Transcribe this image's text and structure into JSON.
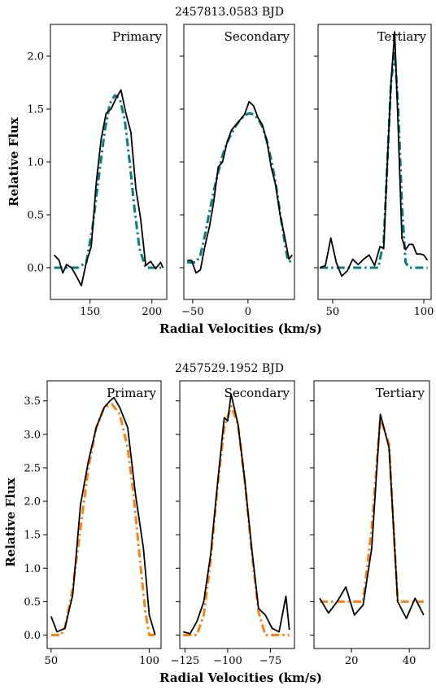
{
  "chart_data": [
    {
      "type": "line",
      "title": "2457813.0583 BJD",
      "xlabel": "Radial Velocities (km/s)",
      "ylabel": "Relative Flux",
      "ylim": [
        -0.3,
        2.3
      ],
      "yticks": [
        0.0,
        0.5,
        1.0,
        1.5,
        2.0
      ],
      "ytick_labels": [
        "0.0",
        "0.5",
        "1.0",
        "1.5",
        "2.0"
      ],
      "colors": {
        "observed": "#000000",
        "model": "#008080"
      },
      "panels": [
        {
          "label": "Primary",
          "xlim": [
            118,
            212
          ],
          "xticks": [
            150,
            200
          ],
          "xtick_labels": [
            "150",
            "200"
          ],
          "series": [
            {
              "role": "observed",
              "style": "solid",
              "x": [
                121,
                125,
                128,
                131,
                135,
                139,
                143,
                147,
                151,
                155,
                159,
                163,
                167,
                171,
                175,
                179,
                183,
                187,
                191,
                195,
                199,
                203,
                207,
                209
              ],
              "y": [
                0.12,
                0.07,
                -0.05,
                0.03,
                0.0,
                -0.08,
                -0.17,
                0.05,
                0.2,
                0.8,
                1.22,
                1.46,
                1.5,
                1.6,
                1.68,
                1.46,
                1.28,
                0.75,
                0.45,
                0.02,
                0.06,
                -0.01,
                0.05,
                0.0
              ]
            },
            {
              "role": "model",
              "style": "dashdot",
              "x": [
                121,
                140,
                147,
                152,
                157,
                162,
                166,
                170,
                174,
                178,
                182,
                186,
                190,
                195,
                200,
                209
              ],
              "y": [
                0.0,
                0.0,
                0.05,
                0.38,
                0.85,
                1.3,
                1.55,
                1.63,
                1.6,
                1.4,
                1.0,
                0.55,
                0.18,
                0.0,
                0.0,
                0.0
              ]
            }
          ]
        },
        {
          "label": "Secondary",
          "xlim": [
            -58,
            42
          ],
          "xticks": [
            -50,
            0
          ],
          "xtick_labels": [
            "−50",
            "0"
          ],
          "series": [
            {
              "role": "observed",
              "style": "solid",
              "x": [
                -55,
                -51,
                -47,
                -43,
                -39,
                -35,
                -31,
                -27,
                -23,
                -19,
                -15,
                -11,
                -7,
                -3,
                1,
                5,
                9,
                13,
                17,
                21,
                25,
                29,
                33,
                37,
                40
              ],
              "y": [
                0.07,
                0.07,
                -0.05,
                -0.02,
                0.2,
                0.38,
                0.62,
                0.95,
                1.0,
                1.18,
                1.3,
                1.35,
                1.4,
                1.45,
                1.57,
                1.53,
                1.42,
                1.35,
                1.2,
                0.95,
                0.78,
                0.5,
                0.3,
                0.08,
                0.12
              ]
            },
            {
              "role": "model",
              "style": "dashdot",
              "x": [
                -55,
                -47,
                -43,
                -39,
                -35,
                -31,
                -27,
                -23,
                -19,
                -15,
                -11,
                -7,
                -3,
                1,
                5,
                9,
                13,
                17,
                21,
                25,
                29,
                33,
                36,
                40
              ],
              "y": [
                0.05,
                0.05,
                0.12,
                0.3,
                0.52,
                0.72,
                0.9,
                1.06,
                1.18,
                1.27,
                1.34,
                1.4,
                1.44,
                1.46,
                1.45,
                1.41,
                1.33,
                1.2,
                1.02,
                0.8,
                0.52,
                0.25,
                0.07,
                0.05
              ]
            }
          ]
        },
        {
          "label": "Tertiary",
          "xlim": [
            42,
            104
          ],
          "xticks": [
            50,
            100
          ],
          "xtick_labels": [
            "50",
            "100"
          ],
          "series": [
            {
              "role": "observed",
              "style": "solid",
              "x": [
                43,
                46,
                49,
                52,
                55,
                58,
                61,
                64,
                67,
                70,
                73,
                76,
                78,
                80,
                82,
                84,
                86,
                88,
                90,
                92,
                94,
                96,
                98,
                100,
                102
              ],
              "y": [
                0.0,
                0.02,
                0.28,
                0.05,
                -0.08,
                -0.03,
                0.08,
                0.03,
                0.08,
                0.12,
                0.02,
                0.2,
                0.18,
                1.0,
                1.75,
                2.23,
                1.3,
                0.28,
                0.17,
                0.22,
                0.22,
                0.13,
                0.13,
                0.12,
                0.07
              ]
            },
            {
              "role": "model",
              "style": "dashdot",
              "x": [
                43,
                70,
                75,
                78,
                80,
                82,
                84,
                86,
                88,
                90,
                92,
                95,
                102
              ],
              "y": [
                0.0,
                0.0,
                0.0,
                0.25,
                1.0,
                1.75,
                2.05,
                1.5,
                0.6,
                0.05,
                0.0,
                0.0,
                0.0
              ]
            }
          ]
        }
      ]
    },
    {
      "type": "line",
      "title": "2457529.1952 BJD",
      "xlabel": "Radial Velocities (km/s)",
      "ylabel": "Relative Flux",
      "ylim": [
        -0.2,
        3.8
      ],
      "yticks": [
        0.0,
        0.5,
        1.0,
        1.5,
        2.0,
        2.5,
        3.0,
        3.5
      ],
      "ytick_labels": [
        "0.0",
        "0.5",
        "1.0",
        "1.5",
        "2.0",
        "2.5",
        "3.0",
        "3.5"
      ],
      "colors": {
        "observed": "#000000",
        "model": "#ff7f0e"
      },
      "panels": [
        {
          "label": "Primary",
          "xlim": [
            48,
            106
          ],
          "xticks": [
            50,
            100
          ],
          "xtick_labels": [
            "50",
            "100"
          ],
          "series": [
            {
              "role": "observed",
              "style": "solid",
              "x": [
                50,
                53,
                57,
                61,
                65,
                69,
                73,
                77,
                80,
                82,
                85,
                89,
                93,
                97,
                100,
                103
              ],
              "y": [
                0.28,
                0.05,
                0.1,
                0.6,
                1.95,
                2.6,
                3.1,
                3.4,
                3.5,
                3.55,
                3.4,
                3.1,
                2.1,
                1.3,
                0.3,
                0.0
              ]
            },
            {
              "role": "model",
              "style": "dashdot",
              "x": [
                50,
                55,
                57,
                61,
                65,
                69,
                73,
                77,
                81,
                85,
                89,
                92,
                95,
                98,
                100,
                103
              ],
              "y": [
                0.0,
                0.0,
                0.1,
                0.7,
                1.6,
                2.5,
                3.1,
                3.4,
                3.45,
                3.3,
                2.8,
                2.1,
                1.2,
                0.35,
                0.0,
                0.0
              ]
            }
          ]
        },
        {
          "label": "Secondary",
          "xlim": [
            -128,
            -61
          ],
          "xticks": [
            -125,
            -100,
            -75
          ],
          "xtick_labels": [
            "−125",
            "−100",
            "−75"
          ],
          "series": [
            {
              "role": "observed",
              "style": "solid",
              "x": [
                -126,
                -122,
                -118,
                -114,
                -110,
                -106,
                -102,
                -100,
                -98,
                -94,
                -90,
                -86,
                -82,
                -78,
                -74,
                -70,
                -66,
                -64
              ],
              "y": [
                0.05,
                0.02,
                0.2,
                0.5,
                1.2,
                2.25,
                3.25,
                3.2,
                3.6,
                3.15,
                2.3,
                1.3,
                0.4,
                0.3,
                0.1,
                0.05,
                0.58,
                0.08
              ]
            },
            {
              "role": "model",
              "style": "dashdot",
              "x": [
                -126,
                -118,
                -114,
                -110,
                -106,
                -102,
                -98,
                -94,
                -90,
                -86,
                -82,
                -78,
                -74,
                -64
              ],
              "y": [
                0.0,
                0.0,
                0.3,
                1.1,
                2.2,
                3.1,
                3.42,
                3.15,
                2.3,
                1.25,
                0.35,
                0.0,
                0.0,
                0.0
              ]
            }
          ]
        },
        {
          "label": "Tertiary",
          "xlim": [
            7,
            47
          ],
          "xticks": [
            20,
            40
          ],
          "xtick_labels": [
            "20",
            "40"
          ],
          "series": [
            {
              "role": "observed",
              "style": "solid",
              "x": [
                9,
                12,
                15,
                18,
                21,
                24,
                27,
                30,
                33,
                36,
                39,
                42,
                45
              ],
              "y": [
                0.55,
                0.33,
                0.5,
                0.72,
                0.3,
                0.45,
                1.3,
                3.3,
                2.8,
                0.5,
                0.25,
                0.55,
                0.3
              ]
            },
            {
              "role": "model",
              "style": "dashdot",
              "x": [
                9,
                24,
                27,
                30,
                33,
                36,
                45
              ],
              "y": [
                0.5,
                0.5,
                1.6,
                3.25,
                2.85,
                0.5,
                0.5
              ]
            }
          ]
        }
      ]
    }
  ]
}
